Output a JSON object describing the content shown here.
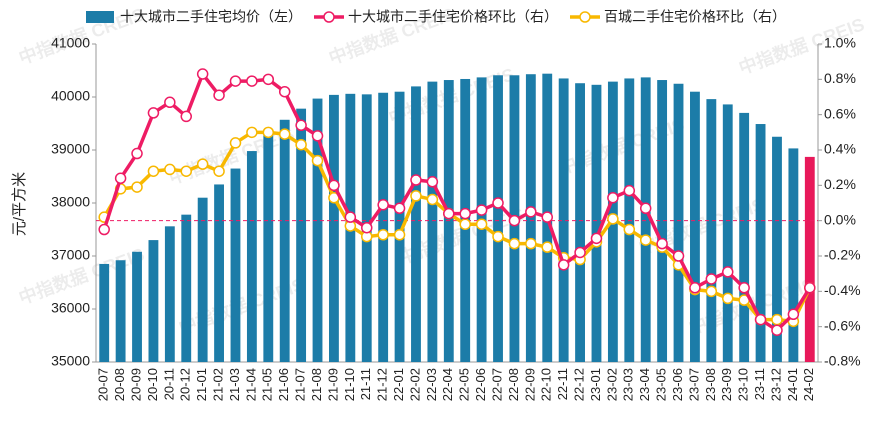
{
  "chart_data": {
    "type": "bar-line",
    "watermark": "中指数据 CREIS",
    "y_label": "元/平方米",
    "categories": [
      "20-07",
      "20-08",
      "20-09",
      "20-10",
      "20-11",
      "20-12",
      "21-01",
      "21-02",
      "21-03",
      "21-04",
      "21-05",
      "21-06",
      "21-07",
      "21-08",
      "21-09",
      "21-10",
      "21-11",
      "21-12",
      "22-01",
      "22-02",
      "22-03",
      "22-04",
      "22-05",
      "22-06",
      "22-07",
      "22-08",
      "22-09",
      "22-10",
      "22-11",
      "22-12",
      "23-01",
      "23-02",
      "23-03",
      "23-04",
      "23-05",
      "23-06",
      "23-07",
      "23-08",
      "23-09",
      "23-10",
      "23-11",
      "23-12",
      "24-01",
      "24-02"
    ],
    "series": [
      {
        "name": "十大城市二手住宅均价（左）",
        "type": "bar",
        "color": "#1c7ca8",
        "last_color": "#e8195a",
        "values": [
          36850,
          36920,
          37080,
          37300,
          37560,
          37780,
          38100,
          38350,
          38650,
          38980,
          39300,
          39570,
          39780,
          39970,
          40040,
          40060,
          40050,
          40080,
          40100,
          40200,
          40290,
          40320,
          40340,
          40370,
          40410,
          40410,
          40430,
          40440,
          40350,
          40260,
          40230,
          40290,
          40350,
          40370,
          40320,
          40250,
          40100,
          39960,
          39860,
          39700,
          39490,
          39250,
          39030,
          38870
        ]
      },
      {
        "name": "十大城市二手住宅价格环比（右）",
        "type": "line",
        "axis": "y2",
        "color": "#ee1c64",
        "values": [
          -0.05,
          0.24,
          0.38,
          0.61,
          0.67,
          0.59,
          0.83,
          0.71,
          0.79,
          0.79,
          0.8,
          0.73,
          0.54,
          0.48,
          0.2,
          0.02,
          -0.04,
          0.09,
          0.07,
          0.23,
          0.22,
          0.04,
          0.04,
          0.06,
          0.1,
          0.0,
          0.05,
          0.02,
          -0.25,
          -0.18,
          -0.1,
          0.13,
          0.17,
          0.07,
          -0.13,
          -0.2,
          -0.38,
          -0.33,
          -0.29,
          -0.38,
          -0.56,
          -0.62,
          -0.53,
          -0.38
        ]
      },
      {
        "name": "百城二手住宅价格环比（右）",
        "type": "line",
        "axis": "y2",
        "color": "#f8b800",
        "values": [
          0.02,
          0.18,
          0.19,
          0.28,
          0.29,
          0.28,
          0.32,
          0.28,
          0.44,
          0.5,
          0.5,
          0.49,
          0.43,
          0.34,
          0.13,
          -0.03,
          -0.09,
          -0.08,
          -0.08,
          0.14,
          0.12,
          0.04,
          -0.02,
          -0.02,
          -0.09,
          -0.13,
          -0.13,
          -0.15,
          -0.21,
          -0.22,
          -0.12,
          0.01,
          -0.05,
          -0.11,
          -0.15,
          -0.25,
          -0.39,
          -0.4,
          -0.44,
          -0.45,
          -0.56,
          -0.56,
          -0.57,
          -0.38
        ]
      }
    ],
    "ylim": [
      35000,
      41000
    ],
    "yticks": [
      35000,
      36000,
      37000,
      38000,
      39000,
      40000,
      41000
    ],
    "y2lim": [
      -0.8,
      1.0
    ],
    "y2ticks": [
      {
        "value": -0.8,
        "label": "-0.8%"
      },
      {
        "value": -0.6,
        "label": "-0.6%"
      },
      {
        "value": -0.4,
        "label": "-0.4%"
      },
      {
        "value": -0.2,
        "label": "-0.2%"
      },
      {
        "value": 0,
        "label": "0.0%"
      },
      {
        "value": 0.2,
        "label": "0.2%"
      },
      {
        "value": 0.4,
        "label": "0.4%"
      },
      {
        "value": 0.6,
        "label": "0.6%"
      },
      {
        "value": 0.8,
        "label": "0.8%"
      },
      {
        "value": 1.0,
        "label": "1.0%"
      }
    ],
    "zero_line_color": "#ee1c64"
  }
}
